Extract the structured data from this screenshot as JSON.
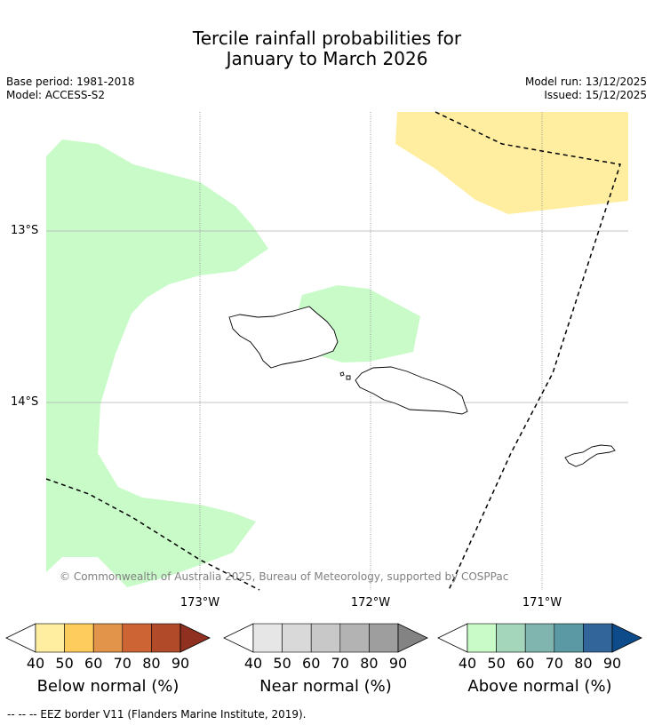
{
  "title_line1": "Tercile rainfall probabilities for",
  "title_line2": "January to March 2026",
  "base_period": "Base period: 1981-2018",
  "model": "Model: ACCESS-S2",
  "model_run": "Model run: 13/12/2025",
  "issued": "Issued: 15/12/2025",
  "lat_labels": [
    "13°S",
    "14°S"
  ],
  "lon_labels": [
    "173°W",
    "172°W",
    "171°W"
  ],
  "copyright": "© Commonwealth of Australia 2025, Bureau of Meteorology, supported by COSPPac",
  "footer": "--  --  -- EEZ border V11 (Flanders Marine Institute, 2019).",
  "colorbars": [
    {
      "label": "Below normal (%)",
      "ticks": [
        "40",
        "50",
        "60",
        "70",
        "80",
        "90"
      ],
      "colors": [
        "#ffeda0",
        "#fecc5c",
        "#e2954a",
        "#cd6433",
        "#b04a29",
        "#8f3020"
      ]
    },
    {
      "label": "Near normal (%)",
      "ticks": [
        "40",
        "50",
        "60",
        "70",
        "80",
        "90"
      ],
      "colors": [
        "#e6e6e6",
        "#d9d9d9",
        "#c8c8c8",
        "#b3b3b3",
        "#9e9e9e",
        "#838383"
      ]
    },
    {
      "label": "Above normal (%)",
      "ticks": [
        "40",
        "50",
        "60",
        "70",
        "80",
        "90"
      ],
      "colors": [
        "#c9fbc9",
        "#a3d6bb",
        "#80b4ae",
        "#5b9aa5",
        "#32669a",
        "#0d4b8a"
      ]
    }
  ],
  "map": {
    "above_normal_color": "#c9fbc9",
    "below_normal_color": "#ffeda0",
    "eez_line_color": "#000000",
    "gridline_color": "#888888"
  }
}
